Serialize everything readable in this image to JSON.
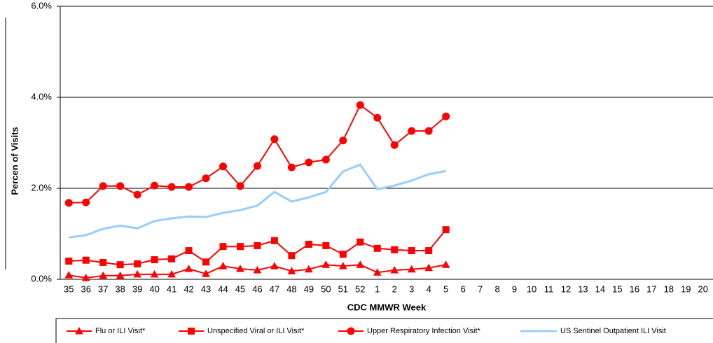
{
  "chart_data": {
    "type": "line",
    "x_label": "CDC MMWR Week",
    "y_label": "Percen of Visits",
    "categories": [
      "35",
      "36",
      "37",
      "38",
      "39",
      "40",
      "41",
      "42",
      "43",
      "44",
      "45",
      "46",
      "47",
      "48",
      "49",
      "50",
      "51",
      "52",
      "1",
      "2",
      "3",
      "4",
      "5",
      "6",
      "7",
      "8",
      "9",
      "10",
      "11",
      "12",
      "13",
      "14",
      "15",
      "16",
      "17",
      "18",
      "19",
      "20"
    ],
    "ylim": [
      0,
      6
    ],
    "yticks": [
      {
        "value": 0,
        "label": "0.0%"
      },
      {
        "value": 2,
        "label": "2.0%"
      },
      {
        "value": 4,
        "label": "4.0%"
      },
      {
        "value": 6,
        "label": "6.0%"
      }
    ],
    "grid": true,
    "legend": "bottom",
    "series": [
      {
        "name": "Flu or ILI Visit*",
        "color": "#ff0000",
        "marker": "triangle",
        "values": [
          0.09,
          0.03,
          0.08,
          0.08,
          0.11,
          0.11,
          0.11,
          0.23,
          0.12,
          0.29,
          0.23,
          0.2,
          0.29,
          0.18,
          0.22,
          0.32,
          0.29,
          0.32,
          0.15,
          0.2,
          0.22,
          0.25,
          0.32,
          null,
          null,
          null,
          null,
          null,
          null,
          null,
          null,
          null,
          null,
          null,
          null,
          null,
          null,
          null
        ]
      },
      {
        "name": "Unspecified Viral or ILI Visit*",
        "color": "#ff0000",
        "marker": "square",
        "values": [
          0.4,
          0.42,
          0.37,
          0.32,
          0.34,
          0.43,
          0.45,
          0.63,
          0.38,
          0.72,
          0.72,
          0.74,
          0.85,
          0.52,
          0.77,
          0.74,
          0.55,
          0.82,
          0.68,
          0.65,
          0.63,
          0.63,
          1.09,
          null,
          null,
          null,
          null,
          null,
          null,
          null,
          null,
          null,
          null,
          null,
          null,
          null,
          null,
          null
        ]
      },
      {
        "name": "Upper Respiratory Infection Visit*",
        "color": "#ff0000",
        "marker": "circle",
        "values": [
          1.68,
          1.69,
          2.05,
          2.05,
          1.86,
          2.06,
          2.03,
          2.03,
          2.22,
          2.48,
          2.05,
          2.49,
          3.08,
          2.46,
          2.57,
          2.63,
          3.05,
          3.83,
          3.55,
          2.95,
          3.26,
          3.26,
          3.58,
          null,
          null,
          null,
          null,
          null,
          null,
          null,
          null,
          null,
          null,
          null,
          null,
          null,
          null,
          null
        ]
      },
      {
        "name": "US Sentinel Outpatient ILI Visit",
        "color": "#99ccff",
        "marker": "none",
        "values": [
          0.92,
          0.97,
          1.11,
          1.18,
          1.12,
          1.28,
          1.34,
          1.38,
          1.37,
          1.46,
          1.52,
          1.62,
          1.92,
          1.71,
          1.8,
          1.92,
          2.37,
          2.52,
          1.98,
          2.06,
          2.17,
          2.31,
          2.38,
          null,
          null,
          null,
          null,
          null,
          null,
          null,
          null,
          null,
          null,
          null,
          null,
          null,
          null,
          null
        ]
      }
    ]
  }
}
